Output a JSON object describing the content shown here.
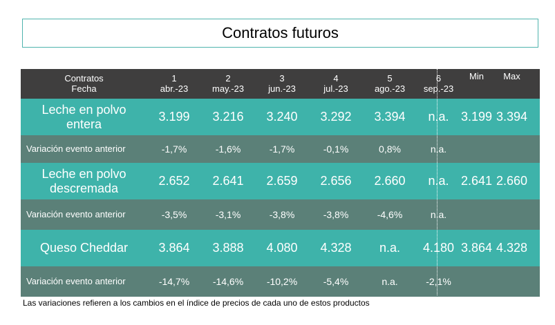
{
  "title": "Contratos futuros",
  "header": {
    "label_line1": "Contratos",
    "label_line2": "Fecha",
    "months": [
      {
        "num": "1",
        "date": "abr.-23"
      },
      {
        "num": "2",
        "date": "may.-23"
      },
      {
        "num": "3",
        "date": "jun.-23"
      },
      {
        "num": "4",
        "date": "jul.-23"
      },
      {
        "num": "5",
        "date": "ago.-23"
      },
      {
        "num": "6",
        "date": "sep.-23"
      }
    ],
    "min": "Min",
    "max": "Max"
  },
  "rows": [
    {
      "label_line1": "Leche en polvo",
      "label_line2": "entera",
      "values": [
        "3.199",
        "3.216",
        "3.240",
        "3.292",
        "3.394",
        "n.a."
      ],
      "min": "3.199",
      "max": "3.394"
    },
    {
      "label": "Variación evento anterior",
      "values": [
        "-1,7%",
        "-1,6%",
        "-1,7%",
        "-0,1%",
        "0,8%",
        "n.a."
      ]
    },
    {
      "label_line1": "Leche en polvo",
      "label_line2": "descremada",
      "values": [
        "2.652",
        "2.641",
        "2.659",
        "2.656",
        "2.660",
        "n.a."
      ],
      "min": "2.641",
      "max": "2.660"
    },
    {
      "label": "Variación evento anterior",
      "values": [
        "-3,5%",
        "-3,1%",
        "-3,8%",
        "-3,8%",
        "-4,6%",
        "n.a."
      ]
    },
    {
      "label": "Queso Cheddar",
      "values": [
        "3.864",
        "3.888",
        "4.080",
        "4.328",
        "n.a.",
        "4.180"
      ],
      "min": "3.864",
      "max": "4.328"
    },
    {
      "label": "Variación evento anterior",
      "values": [
        "-14,7%",
        "-14,6%",
        "-10,2%",
        "-5,4%",
        "n.a.",
        "-2,1%"
      ]
    }
  ],
  "footnote": "Las variaciones refieren a los cambios en el índice de precios de cada uno de estos productos",
  "colors": {
    "header_bg": "#3f3e3e",
    "product_bg": "#3eb3aa",
    "variation_bg": "#5b8078",
    "title_border": "#4fb3ad"
  }
}
